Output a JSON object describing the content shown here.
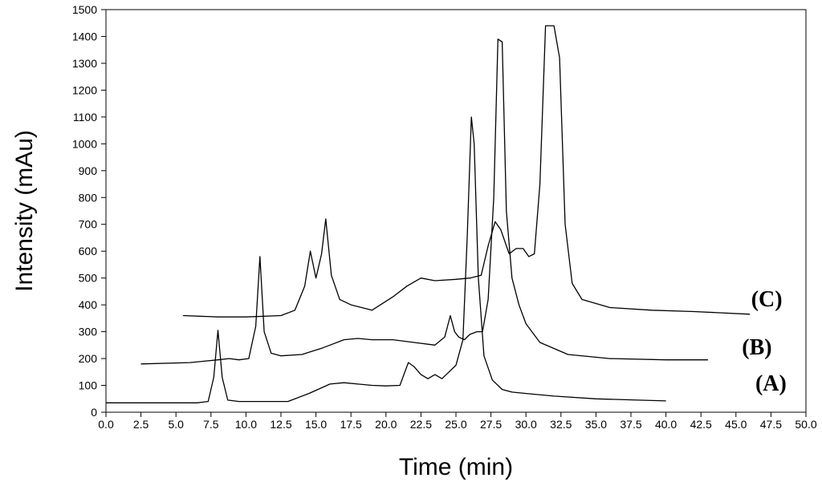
{
  "chart_data": {
    "type": "line",
    "xlabel": "Time (min)",
    "ylabel": "Intensity (mAu)",
    "xlim": [
      0,
      50
    ],
    "ylim": [
      0,
      1500
    ],
    "x_ticks": [
      "0.0",
      "2.5",
      "5.0",
      "7.5",
      "10.0",
      "12.5",
      "15.0",
      "17.5",
      "20.0",
      "22.5",
      "25.0",
      "27.5",
      "30.0",
      "32.5",
      "35.0",
      "37.5",
      "40.0",
      "42.5",
      "45.0",
      "47.5",
      "50.0"
    ],
    "x_tick_values": [
      0,
      2.5,
      5,
      7.5,
      10,
      12.5,
      15,
      17.5,
      20,
      22.5,
      25,
      27.5,
      30,
      32.5,
      35,
      37.5,
      40,
      42.5,
      45,
      47.5,
      50
    ],
    "y_ticks": [
      "0",
      "100",
      "200",
      "300",
      "400",
      "500",
      "600",
      "700",
      "800",
      "900",
      "1000",
      "1100",
      "1200",
      "1300",
      "1400",
      "1500"
    ],
    "y_tick_values": [
      0,
      100,
      200,
      300,
      400,
      500,
      600,
      700,
      800,
      900,
      1000,
      1100,
      1200,
      1300,
      1400,
      1500
    ],
    "grid": false,
    "series": [
      {
        "name": "(A)",
        "x": [
          0,
          6.5,
          7.3,
          7.7,
          8.0,
          8.3,
          8.7,
          9.5,
          11,
          13,
          14.5,
          16,
          17,
          18,
          19,
          20,
          21,
          21.6,
          22,
          22.5,
          23,
          23.5,
          24,
          24.5,
          25,
          25.5,
          25.8,
          26.1,
          26.3,
          26.6,
          27,
          27.6,
          28.3,
          29,
          30,
          32,
          35,
          38,
          40
        ],
        "y": [
          35,
          35,
          40,
          130,
          305,
          130,
          45,
          40,
          40,
          40,
          70,
          105,
          110,
          105,
          100,
          98,
          100,
          185,
          170,
          140,
          125,
          140,
          125,
          150,
          175,
          270,
          650,
          1100,
          1000,
          500,
          210,
          120,
          85,
          75,
          70,
          60,
          50,
          45,
          42
        ],
        "label_x": 47.5,
        "label_y": 80
      },
      {
        "name": "(B)",
        "x": [
          2.5,
          6,
          7,
          8,
          8.8,
          9.5,
          10.2,
          10.7,
          11.0,
          11.3,
          11.8,
          12.5,
          14,
          15.5,
          17,
          18,
          19,
          20.5,
          22,
          23.5,
          24.2,
          24.6,
          24.9,
          25.2,
          25.6,
          26,
          26.5,
          26.9,
          27.3,
          27.7,
          28.0,
          28.3,
          28.6,
          29.0,
          29.5,
          30,
          31,
          33,
          36,
          40,
          43
        ],
        "y": [
          180,
          185,
          190,
          195,
          200,
          195,
          200,
          320,
          580,
          300,
          220,
          210,
          215,
          240,
          270,
          275,
          270,
          270,
          260,
          250,
          280,
          360,
          300,
          280,
          270,
          290,
          300,
          300,
          420,
          800,
          1390,
          1380,
          750,
          500,
          400,
          330,
          260,
          215,
          200,
          195,
          195
        ],
        "label_x": 46.5,
        "label_y": 215
      },
      {
        "name": "(C)",
        "x": [
          5.5,
          8,
          10,
          12.5,
          13.5,
          14.2,
          14.6,
          15.0,
          15.4,
          15.7,
          16.1,
          16.7,
          17.5,
          19,
          20.5,
          21.5,
          22.5,
          23.5,
          25,
          26,
          26.8,
          27.3,
          27.8,
          28.2,
          28.8,
          29.3,
          29.8,
          30.2,
          30.6,
          31.0,
          31.4,
          31.7,
          32.0,
          32.4,
          32.8,
          33.3,
          34,
          36,
          39,
          42,
          46
        ],
        "y": [
          360,
          355,
          355,
          360,
          380,
          470,
          600,
          500,
          590,
          720,
          510,
          420,
          400,
          380,
          430,
          470,
          500,
          490,
          495,
          500,
          510,
          620,
          710,
          680,
          590,
          610,
          610,
          580,
          590,
          850,
          1440,
          1440,
          1440,
          1320,
          700,
          480,
          420,
          390,
          380,
          375,
          365
        ],
        "label_x": 47.2,
        "label_y": 395
      }
    ]
  }
}
